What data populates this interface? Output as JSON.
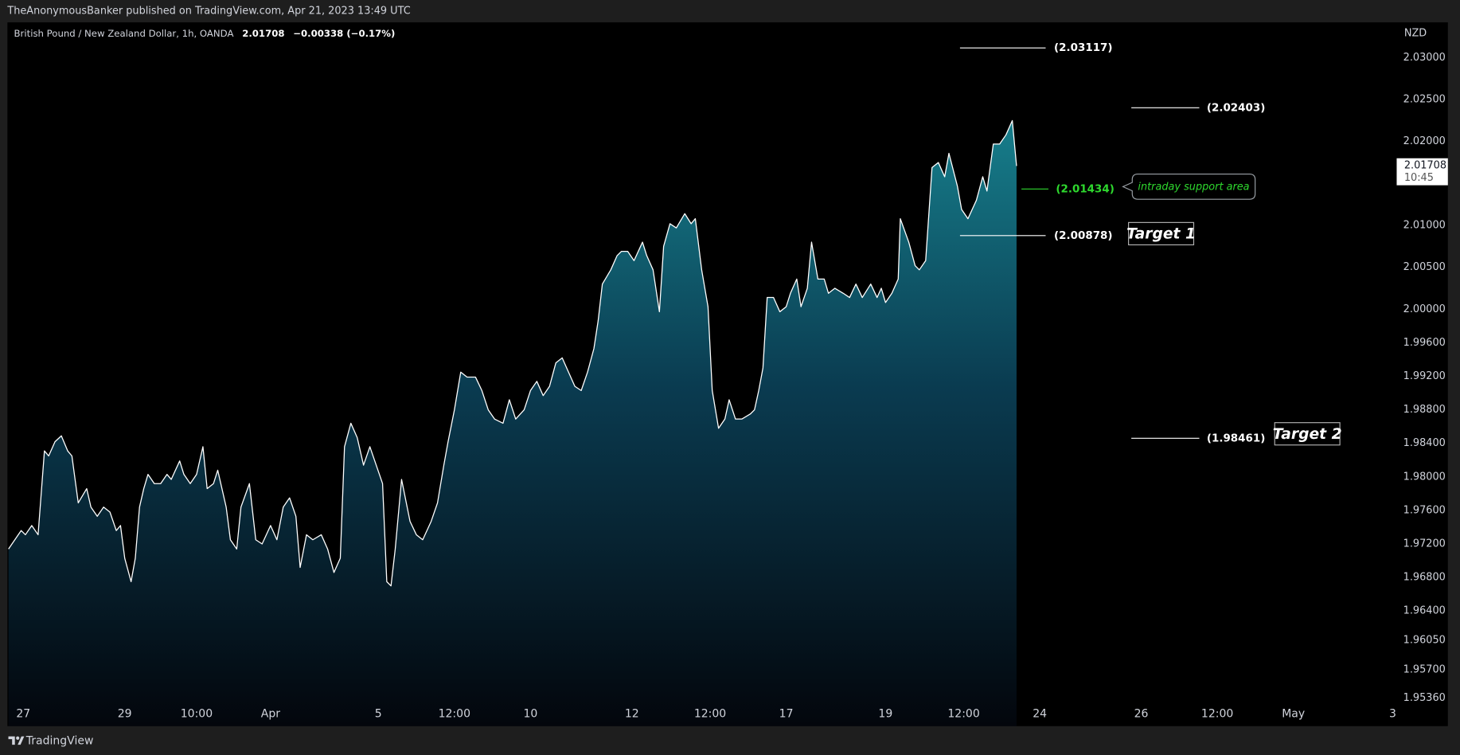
{
  "header": {
    "publisher": "TheAnonymousBanker published on TradingView.com, Apr 21, 2023 13:49 UTC"
  },
  "chart_data": {
    "type": "area",
    "title": "British Pound / New Zealand Dollar, 1h, OANDA",
    "last_price": 2.01708,
    "change": "−0.00338 (−0.17%)",
    "countdown": "10:45",
    "unit": "NZD",
    "color": "#ffffff",
    "grid": false,
    "x": [
      -7,
      -4,
      -1,
      1,
      4,
      7,
      10,
      12,
      15,
      18,
      21,
      23,
      26,
      30,
      32,
      35,
      38,
      41,
      44,
      46,
      48,
      51,
      53,
      55,
      57,
      59,
      62,
      65,
      68,
      70,
      74,
      76,
      79,
      82,
      85,
      87,
      90,
      92,
      96,
      98,
      101,
      103,
      107,
      110,
      113,
      117,
      120,
      123,
      126,
      129,
      131,
      134,
      137,
      141,
      144,
      147,
      150,
      152,
      155,
      158,
      161,
      164,
      167,
      170,
      172,
      174,
      176,
      179,
      183,
      186,
      189,
      193,
      196,
      199,
      201,
      204,
      207,
      210,
      214,
      217,
      220,
      223,
      227,
      230,
      233,
      237,
      240,
      243,
      246,
      249,
      252,
      255,
      258,
      261,
      264,
      267,
      270,
      272,
      274,
      278,
      281,
      283,
      286,
      289,
      293,
      295,
      298,
      301,
      303,
      306,
      309,
      313,
      316,
      318,
      321,
      324,
      326,
      329,
      332,
      334,
      337,
      340,
      344,
      346,
      348,
      350,
      352,
      355,
      358,
      361,
      363,
      366,
      368,
      371,
      373,
      376,
      379,
      381,
      384,
      388,
      391,
      394,
      397,
      401,
      404,
      406,
      408,
      411,
      414,
      415,
      419,
      422,
      424,
      427,
      430,
      433,
      436,
      438,
      442,
      444,
      447,
      451,
      454,
      456,
      459,
      462,
      465,
      468,
      470
    ],
    "values": [
      1.9714,
      1.9725,
      1.9736,
      1.9731,
      1.9742,
      1.9731,
      1.9831,
      1.9825,
      1.9842,
      1.9849,
      1.9831,
      1.9825,
      1.9769,
      1.9786,
      1.9764,
      1.9753,
      1.9764,
      1.9758,
      1.9736,
      1.9742,
      1.9703,
      1.9675,
      1.9703,
      1.9764,
      1.9786,
      1.9803,
      1.9792,
      1.9792,
      1.9803,
      1.9797,
      1.9819,
      1.9803,
      1.9792,
      1.9803,
      1.9836,
      1.9786,
      1.9792,
      1.9808,
      1.9764,
      1.9725,
      1.9714,
      1.9764,
      1.9792,
      1.9725,
      1.972,
      1.9742,
      1.9725,
      1.9764,
      1.9775,
      1.9753,
      1.9692,
      1.9731,
      1.9725,
      1.9731,
      1.9714,
      1.9686,
      1.9703,
      1.9836,
      1.9864,
      1.9847,
      1.9814,
      1.9836,
      1.9814,
      1.9792,
      1.9675,
      1.967,
      1.9714,
      1.9797,
      1.9747,
      1.9731,
      1.9725,
      1.9747,
      1.9769,
      1.9814,
      1.9842,
      1.988,
      1.9925,
      1.9919,
      1.9919,
      1.9903,
      1.988,
      1.9869,
      1.9864,
      1.9892,
      1.9869,
      1.988,
      1.9903,
      1.9914,
      1.9897,
      1.9908,
      1.9936,
      1.9942,
      1.9925,
      1.9908,
      1.9903,
      1.9925,
      1.9953,
      1.9986,
      2.003,
      2.0047,
      2.0064,
      2.0069,
      2.0069,
      2.0058,
      2.008,
      2.0064,
      2.0047,
      1.9997,
      2.0075,
      2.0102,
      2.0097,
      2.0114,
      2.0102,
      2.0108,
      2.0047,
      2.0003,
      1.9903,
      1.9858,
      1.9869,
      1.9892,
      1.9869,
      1.9869,
      1.9875,
      1.988,
      1.9903,
      1.993,
      2.0014,
      2.0014,
      1.9997,
      2.0003,
      2.0019,
      2.0036,
      2.0003,
      2.0025,
      2.008,
      2.0036,
      2.0036,
      2.0019,
      2.0025,
      2.0019,
      2.0014,
      2.003,
      2.0014,
      2.003,
      2.0014,
      2.0025,
      2.0008,
      2.0019,
      2.0036,
      2.0108,
      2.008,
      2.0052,
      2.0047,
      2.0058,
      2.0169,
      2.0175,
      2.0158,
      2.0186,
      2.0147,
      2.0119,
      2.0108,
      2.013,
      2.0158,
      2.0141,
      2.0197,
      2.0197,
      2.0208,
      2.0225,
      2.01708
    ],
    "xlim": [
      -7.5,
      649
    ],
    "ylim": [
      1.95027,
      2.03422
    ],
    "xticks": [
      {
        "value": 0,
        "label": "27"
      },
      {
        "value": 48,
        "label": "29"
      },
      {
        "value": 82,
        "label": "10:00"
      },
      {
        "value": 117,
        "label": "Apr"
      },
      {
        "value": 168,
        "label": "5"
      },
      {
        "value": 204,
        "label": "12:00"
      },
      {
        "value": 240,
        "label": "10"
      },
      {
        "value": 288,
        "label": "12"
      },
      {
        "value": 325,
        "label": "12:00"
      },
      {
        "value": 361,
        "label": "17"
      },
      {
        "value": 408,
        "label": "19"
      },
      {
        "value": 445,
        "label": "12:00"
      },
      {
        "value": 481,
        "label": "24"
      },
      {
        "value": 529,
        "label": "26"
      },
      {
        "value": 565,
        "label": "12:00"
      },
      {
        "value": 601,
        "label": "May"
      },
      {
        "value": 648,
        "label": "3"
      }
    ],
    "yticks": [
      {
        "value": 2.03,
        "label": "2.03000"
      },
      {
        "value": 2.025,
        "label": "2.02500"
      },
      {
        "value": 2.02,
        "label": "2.02000"
      },
      {
        "value": 2.01,
        "label": "2.01000"
      },
      {
        "value": 2.005,
        "label": "2.00500"
      },
      {
        "value": 2.0,
        "label": "2.00000"
      },
      {
        "value": 1.996,
        "label": "1.99600"
      },
      {
        "value": 1.992,
        "label": "1.99200"
      },
      {
        "value": 1.988,
        "label": "1.98800"
      },
      {
        "value": 1.984,
        "label": "1.98400"
      },
      {
        "value": 1.98,
        "label": "1.98000"
      },
      {
        "value": 1.976,
        "label": "1.97600"
      },
      {
        "value": 1.972,
        "label": "1.97200"
      },
      {
        "value": 1.968,
        "label": "1.96800"
      },
      {
        "value": 1.964,
        "label": "1.96400"
      },
      {
        "value": 1.9605,
        "label": "1.96050"
      },
      {
        "value": 1.957,
        "label": "1.95700"
      },
      {
        "value": 1.9536,
        "label": "1.95360"
      }
    ],
    "levels": [
      {
        "value": 2.03117,
        "label": "(2.03117)",
        "color": "#ffffff"
      },
      {
        "value": 2.02403,
        "label": "(2.02403)",
        "color": "#ffffff"
      },
      {
        "value": 2.01434,
        "label": "(2.01434)",
        "color": "#2ed82e"
      },
      {
        "value": 2.00878,
        "label": "(2.00878)",
        "color": "#ffffff"
      },
      {
        "value": 1.98461,
        "label": "(1.98461)",
        "color": "#ffffff"
      }
    ],
    "callouts": [
      "intraday support area",
      "Target 1",
      "Target 2"
    ]
  },
  "footer": {
    "brand": "TradingView"
  }
}
